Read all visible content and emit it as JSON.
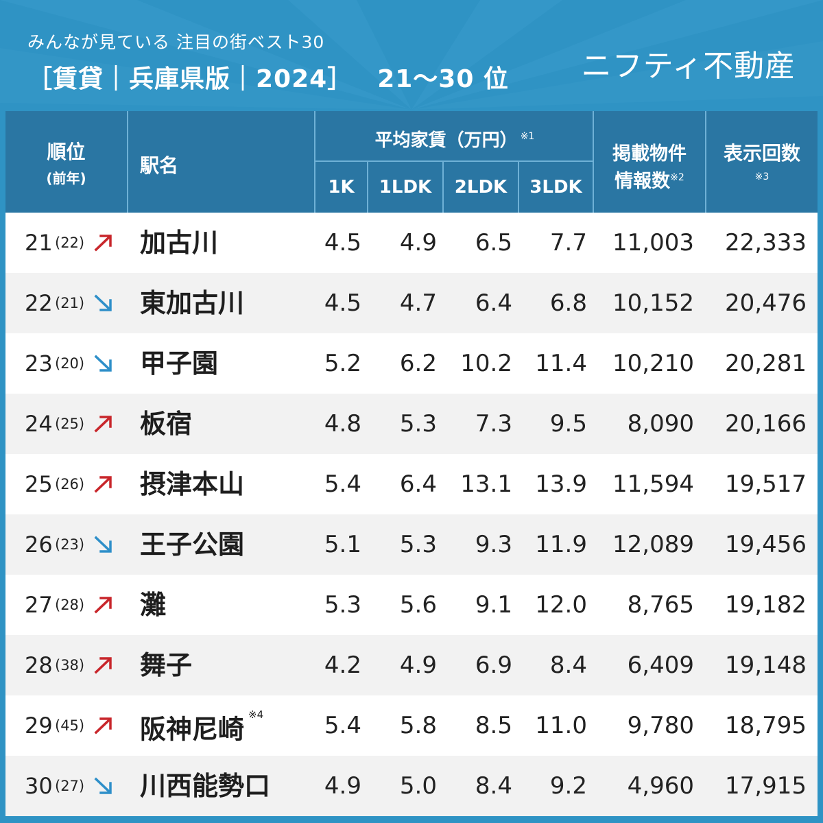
{
  "header": {
    "subtitle": "みんなが見ている 注目の街ベスト30",
    "title": "［賃貸｜兵庫県版｜2024］",
    "rank_range": "21〜30 位",
    "brand": "ニフティ不動産"
  },
  "columns": {
    "rank": "順位",
    "rank_prev": "(前年)",
    "station": "駅名",
    "avg_rent": "平均家賃（万円）",
    "avg_rent_note": "※1",
    "k1": "1K",
    "ldk1": "1LDK",
    "ldk2": "2LDK",
    "ldk3": "3LDK",
    "listings_line1": "掲載物件",
    "listings_line2": "情報数",
    "listings_note": "※2",
    "views": "表示回数",
    "views_note": "※3"
  },
  "colors": {
    "up_arrow": "#c8262b",
    "down_arrow": "#2e8fc9",
    "header_bg": "#2a76a3",
    "brand_bg": "#2f93c4"
  },
  "chart_data": {
    "type": "table",
    "rows": [
      {
        "rank": "21",
        "prev": "(22)",
        "trend": "up",
        "station": "加古川",
        "note": "",
        "k1": "4.5",
        "ldk1": "4.9",
        "ldk2": "6.5",
        "ldk3": "7.7",
        "listings": "11,003",
        "views": "22,333"
      },
      {
        "rank": "22",
        "prev": "(21)",
        "trend": "down",
        "station": "東加古川",
        "note": "",
        "k1": "4.5",
        "ldk1": "4.7",
        "ldk2": "6.4",
        "ldk3": "6.8",
        "listings": "10,152",
        "views": "20,476"
      },
      {
        "rank": "23",
        "prev": "(20)",
        "trend": "down",
        "station": "甲子園",
        "note": "",
        "k1": "5.2",
        "ldk1": "6.2",
        "ldk2": "10.2",
        "ldk3": "11.4",
        "listings": "10,210",
        "views": "20,281"
      },
      {
        "rank": "24",
        "prev": "(25)",
        "trend": "up",
        "station": "板宿",
        "note": "",
        "k1": "4.8",
        "ldk1": "5.3",
        "ldk2": "7.3",
        "ldk3": "9.5",
        "listings": "8,090",
        "views": "20,166"
      },
      {
        "rank": "25",
        "prev": "(26)",
        "trend": "up",
        "station": "摂津本山",
        "note": "",
        "k1": "5.4",
        "ldk1": "6.4",
        "ldk2": "13.1",
        "ldk3": "13.9",
        "listings": "11,594",
        "views": "19,517"
      },
      {
        "rank": "26",
        "prev": "(23)",
        "trend": "down",
        "station": "王子公園",
        "note": "",
        "k1": "5.1",
        "ldk1": "5.3",
        "ldk2": "9.3",
        "ldk3": "11.9",
        "listings": "12,089",
        "views": "19,456"
      },
      {
        "rank": "27",
        "prev": "(28)",
        "trend": "up",
        "station": "灘",
        "note": "",
        "k1": "5.3",
        "ldk1": "5.6",
        "ldk2": "9.1",
        "ldk3": "12.0",
        "listings": "8,765",
        "views": "19,182"
      },
      {
        "rank": "28",
        "prev": "(38)",
        "trend": "up",
        "station": "舞子",
        "note": "",
        "k1": "4.2",
        "ldk1": "4.9",
        "ldk2": "6.9",
        "ldk3": "8.4",
        "listings": "6,409",
        "views": "19,148"
      },
      {
        "rank": "29",
        "prev": "(45)",
        "trend": "up",
        "station": "阪神尼崎",
        "note": "※4",
        "k1": "5.4",
        "ldk1": "5.8",
        "ldk2": "8.5",
        "ldk3": "11.0",
        "listings": "9,780",
        "views": "18,795"
      },
      {
        "rank": "30",
        "prev": "(27)",
        "trend": "down",
        "station": "川西能勢口",
        "note": "",
        "k1": "4.9",
        "ldk1": "5.0",
        "ldk2": "8.4",
        "ldk3": "9.2",
        "listings": "4,960",
        "views": "17,915"
      }
    ]
  }
}
